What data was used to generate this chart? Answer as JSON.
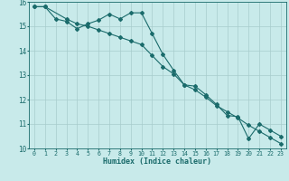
{
  "title": "",
  "xlabel": "Humidex (Indice chaleur)",
  "ylabel": "",
  "bg_color": "#c8eaea",
  "grid_color": "#a8cccc",
  "line_color": "#1a6b6b",
  "xlim": [
    -0.5,
    23.5
  ],
  "ylim": [
    10,
    16
  ],
  "xticks": [
    0,
    1,
    2,
    3,
    4,
    5,
    6,
    7,
    8,
    9,
    10,
    11,
    12,
    13,
    14,
    15,
    16,
    17,
    18,
    19,
    20,
    21,
    22,
    23
  ],
  "yticks": [
    10,
    11,
    12,
    13,
    14,
    15,
    16
  ],
  "series1_x": [
    0,
    1,
    2,
    3,
    4,
    5,
    6,
    7,
    8,
    9,
    10,
    11,
    12,
    13,
    14,
    15,
    16,
    17,
    18,
    19,
    20,
    21,
    22,
    23
  ],
  "series1_y": [
    15.8,
    15.8,
    15.3,
    15.2,
    14.9,
    15.1,
    15.25,
    15.5,
    15.3,
    15.55,
    15.55,
    14.7,
    13.85,
    13.2,
    12.6,
    12.55,
    12.2,
    11.8,
    11.35,
    11.3,
    10.4,
    11.0,
    10.75,
    10.5
  ],
  "series2_x": [
    0,
    1,
    3,
    4,
    5,
    6,
    7,
    8,
    9,
    10,
    11,
    12,
    13,
    14,
    15,
    16,
    17,
    18,
    19,
    20,
    21,
    22,
    23
  ],
  "series2_y": [
    15.8,
    15.8,
    15.3,
    15.1,
    15.0,
    14.85,
    14.7,
    14.55,
    14.4,
    14.25,
    13.8,
    13.35,
    13.05,
    12.6,
    12.4,
    12.1,
    11.75,
    11.5,
    11.25,
    10.95,
    10.7,
    10.45,
    10.2
  ],
  "marker": "D",
  "markersize": 2.0,
  "linewidth": 0.8
}
